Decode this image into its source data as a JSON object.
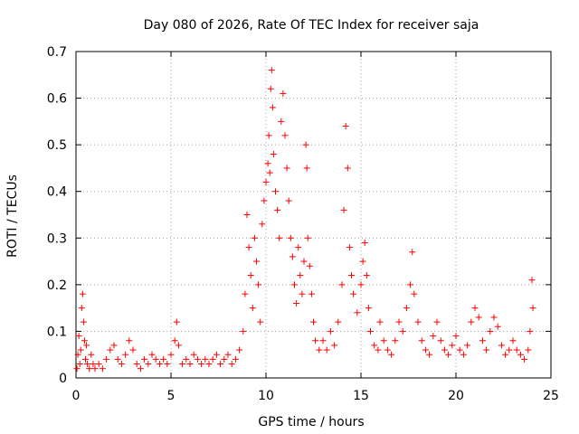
{
  "chart_data": {
    "type": "scatter",
    "title": "Day 080 of 2026, Rate Of TEC Index for receiver saja",
    "xlabel": "GPS time / hours",
    "ylabel": "ROTI / TECUs",
    "xlim": [
      0,
      25
    ],
    "ylim": [
      0,
      0.7
    ],
    "x_ticks": [
      0,
      5,
      10,
      15,
      20,
      25
    ],
    "y_ticks": [
      0,
      0.1,
      0.2,
      0.3,
      0.4,
      0.5,
      0.6,
      0.7
    ],
    "x_tick_labels": [
      "0",
      "5",
      "10",
      "15",
      "20",
      "25"
    ],
    "y_tick_labels": [
      "0",
      "0.1",
      "0.2",
      "0.3",
      "0.4",
      "0.5",
      "0.6",
      "0.7"
    ],
    "grid": true,
    "marker": "+",
    "color": "#ff0000",
    "series": [
      {
        "points": [
          [
            0.05,
            0.02
          ],
          [
            0.1,
            0.05
          ],
          [
            0.15,
            0.09
          ],
          [
            0.2,
            0.03
          ],
          [
            0.25,
            0.06
          ],
          [
            0.3,
            0.15
          ],
          [
            0.35,
            0.18
          ],
          [
            0.4,
            0.12
          ],
          [
            0.45,
            0.08
          ],
          [
            0.5,
            0.04
          ],
          [
            0.55,
            0.07
          ],
          [
            0.6,
            0.03
          ],
          [
            0.7,
            0.02
          ],
          [
            0.8,
            0.05
          ],
          [
            0.9,
            0.03
          ],
          [
            1.0,
            0.02
          ],
          [
            1.2,
            0.03
          ],
          [
            1.4,
            0.02
          ],
          [
            1.6,
            0.04
          ],
          [
            1.8,
            0.06
          ],
          [
            2.0,
            0.07
          ],
          [
            2.2,
            0.04
          ],
          [
            2.4,
            0.03
          ],
          [
            2.6,
            0.05
          ],
          [
            2.8,
            0.08
          ],
          [
            3.0,
            0.06
          ],
          [
            3.2,
            0.03
          ],
          [
            3.4,
            0.02
          ],
          [
            3.6,
            0.04
          ],
          [
            3.8,
            0.03
          ],
          [
            4.0,
            0.05
          ],
          [
            4.2,
            0.04
          ],
          [
            4.4,
            0.03
          ],
          [
            4.6,
            0.04
          ],
          [
            4.8,
            0.03
          ],
          [
            5.0,
            0.05
          ],
          [
            5.2,
            0.08
          ],
          [
            5.3,
            0.12
          ],
          [
            5.4,
            0.07
          ],
          [
            5.6,
            0.03
          ],
          [
            5.8,
            0.04
          ],
          [
            6.0,
            0.03
          ],
          [
            6.2,
            0.05
          ],
          [
            6.4,
            0.04
          ],
          [
            6.6,
            0.03
          ],
          [
            6.8,
            0.04
          ],
          [
            7.0,
            0.03
          ],
          [
            7.2,
            0.04
          ],
          [
            7.4,
            0.05
          ],
          [
            7.6,
            0.03
          ],
          [
            7.8,
            0.04
          ],
          [
            8.0,
            0.05
          ],
          [
            8.2,
            0.03
          ],
          [
            8.4,
            0.04
          ],
          [
            8.6,
            0.06
          ],
          [
            8.8,
            0.1
          ],
          [
            8.9,
            0.18
          ],
          [
            9.0,
            0.35
          ],
          [
            9.1,
            0.28
          ],
          [
            9.2,
            0.22
          ],
          [
            9.3,
            0.15
          ],
          [
            9.4,
            0.3
          ],
          [
            9.5,
            0.25
          ],
          [
            9.6,
            0.2
          ],
          [
            9.7,
            0.12
          ],
          [
            9.8,
            0.33
          ],
          [
            9.9,
            0.38
          ],
          [
            10.0,
            0.42
          ],
          [
            10.1,
            0.46
          ],
          [
            10.15,
            0.52
          ],
          [
            10.2,
            0.44
          ],
          [
            10.25,
            0.62
          ],
          [
            10.3,
            0.66
          ],
          [
            10.35,
            0.58
          ],
          [
            10.4,
            0.48
          ],
          [
            10.5,
            0.4
          ],
          [
            10.6,
            0.36
          ],
          [
            10.7,
            0.3
          ],
          [
            10.8,
            0.55
          ],
          [
            10.9,
            0.61
          ],
          [
            11.0,
            0.52
          ],
          [
            11.1,
            0.45
          ],
          [
            11.2,
            0.38
          ],
          [
            11.3,
            0.3
          ],
          [
            11.4,
            0.26
          ],
          [
            11.5,
            0.2
          ],
          [
            11.6,
            0.16
          ],
          [
            11.7,
            0.28
          ],
          [
            11.8,
            0.22
          ],
          [
            11.9,
            0.18
          ],
          [
            12.0,
            0.25
          ],
          [
            12.1,
            0.5
          ],
          [
            12.15,
            0.45
          ],
          [
            12.2,
            0.3
          ],
          [
            12.3,
            0.24
          ],
          [
            12.4,
            0.18
          ],
          [
            12.5,
            0.12
          ],
          [
            12.6,
            0.08
          ],
          [
            12.8,
            0.06
          ],
          [
            13.0,
            0.08
          ],
          [
            13.2,
            0.06
          ],
          [
            13.4,
            0.1
          ],
          [
            13.6,
            0.07
          ],
          [
            13.8,
            0.12
          ],
          [
            14.0,
            0.2
          ],
          [
            14.1,
            0.36
          ],
          [
            14.2,
            0.54
          ],
          [
            14.3,
            0.45
          ],
          [
            14.4,
            0.28
          ],
          [
            14.5,
            0.22
          ],
          [
            14.6,
            0.18
          ],
          [
            14.8,
            0.14
          ],
          [
            15.0,
            0.2
          ],
          [
            15.1,
            0.25
          ],
          [
            15.2,
            0.29
          ],
          [
            15.3,
            0.22
          ],
          [
            15.4,
            0.15
          ],
          [
            15.5,
            0.1
          ],
          [
            15.7,
            0.07
          ],
          [
            15.9,
            0.06
          ],
          [
            16.0,
            0.12
          ],
          [
            16.2,
            0.08
          ],
          [
            16.4,
            0.06
          ],
          [
            16.6,
            0.05
          ],
          [
            16.8,
            0.08
          ],
          [
            17.0,
            0.12
          ],
          [
            17.2,
            0.1
          ],
          [
            17.4,
            0.15
          ],
          [
            17.6,
            0.2
          ],
          [
            17.7,
            0.27
          ],
          [
            17.8,
            0.18
          ],
          [
            18.0,
            0.12
          ],
          [
            18.2,
            0.08
          ],
          [
            18.4,
            0.06
          ],
          [
            18.6,
            0.05
          ],
          [
            18.8,
            0.09
          ],
          [
            19.0,
            0.12
          ],
          [
            19.2,
            0.08
          ],
          [
            19.4,
            0.06
          ],
          [
            19.6,
            0.05
          ],
          [
            19.8,
            0.07
          ],
          [
            20.0,
            0.09
          ],
          [
            20.2,
            0.06
          ],
          [
            20.4,
            0.05
          ],
          [
            20.6,
            0.07
          ],
          [
            20.8,
            0.12
          ],
          [
            21.0,
            0.15
          ],
          [
            21.2,
            0.13
          ],
          [
            21.4,
            0.08
          ],
          [
            21.6,
            0.06
          ],
          [
            21.8,
            0.1
          ],
          [
            22.0,
            0.13
          ],
          [
            22.2,
            0.11
          ],
          [
            22.4,
            0.07
          ],
          [
            22.6,
            0.05
          ],
          [
            22.8,
            0.06
          ],
          [
            23.0,
            0.08
          ],
          [
            23.2,
            0.06
          ],
          [
            23.4,
            0.05
          ],
          [
            23.6,
            0.04
          ],
          [
            23.8,
            0.06
          ],
          [
            23.9,
            0.1
          ],
          [
            24.0,
            0.21
          ],
          [
            24.05,
            0.15
          ]
        ]
      }
    ]
  }
}
